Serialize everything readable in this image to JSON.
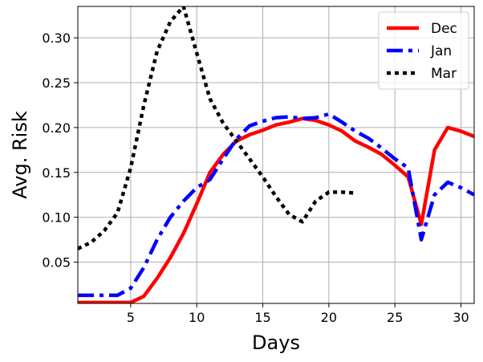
{
  "chart_data": {
    "type": "line",
    "title": "",
    "xlabel": "Days",
    "ylabel": "Avg. Risk",
    "xlim": [
      1,
      31
    ],
    "ylim": [
      0.004,
      0.335
    ],
    "xticks": [
      5,
      10,
      15,
      20,
      25,
      30
    ],
    "xtick_labels": [
      "5",
      "10",
      "15",
      "20",
      "25",
      "30"
    ],
    "yticks": [
      0.05,
      0.1,
      0.15,
      0.2,
      0.25,
      0.3
    ],
    "ytick_labels": [
      "0.05",
      "0.10",
      "0.15",
      "0.20",
      "0.25",
      "0.30"
    ],
    "grid": true,
    "legend_position": "top-right",
    "series": [
      {
        "name": "Dec",
        "color": "#ff0000",
        "style": "solid",
        "x": [
          1,
          2,
          3,
          4,
          5,
          6,
          7,
          8,
          9,
          10,
          11,
          12,
          13,
          14,
          15,
          16,
          17,
          18,
          19,
          20,
          21,
          22,
          23,
          24,
          25,
          26,
          27,
          28,
          29,
          30,
          31
        ],
        "y": [
          0.005,
          0.005,
          0.005,
          0.005,
          0.005,
          0.012,
          0.032,
          0.055,
          0.082,
          0.115,
          0.15,
          0.17,
          0.185,
          0.192,
          0.197,
          0.203,
          0.206,
          0.21,
          0.208,
          0.203,
          0.196,
          0.185,
          0.178,
          0.17,
          0.158,
          0.145,
          0.092,
          0.175,
          0.2,
          0.196,
          0.19
        ]
      },
      {
        "name": "Jan",
        "color": "#0000ff",
        "style": "dashdot",
        "x": [
          1,
          2,
          3,
          4,
          5,
          6,
          7,
          8,
          9,
          10,
          11,
          12,
          13,
          14,
          15,
          16,
          17,
          18,
          19,
          20,
          21,
          22,
          23,
          24,
          25,
          26,
          27,
          28,
          29,
          30,
          31
        ],
        "y": [
          0.013,
          0.013,
          0.013,
          0.013,
          0.021,
          0.044,
          0.075,
          0.1,
          0.118,
          0.133,
          0.142,
          0.165,
          0.187,
          0.202,
          0.207,
          0.211,
          0.212,
          0.21,
          0.211,
          0.215,
          0.206,
          0.196,
          0.188,
          0.177,
          0.165,
          0.155,
          0.075,
          0.125,
          0.139,
          0.133,
          0.125
        ]
      },
      {
        "name": "Mar",
        "color": "#000000",
        "style": "dotted",
        "x": [
          1,
          2,
          3,
          4,
          5,
          6,
          7,
          8,
          9,
          10,
          11,
          12,
          13,
          14,
          15,
          16,
          17,
          18,
          19,
          20,
          21,
          22
        ],
        "y": [
          0.065,
          0.072,
          0.085,
          0.105,
          0.155,
          0.225,
          0.285,
          0.318,
          0.335,
          0.283,
          0.232,
          0.205,
          0.185,
          0.165,
          0.145,
          0.123,
          0.103,
          0.095,
          0.118,
          0.128,
          0.128,
          0.127
        ]
      }
    ]
  }
}
